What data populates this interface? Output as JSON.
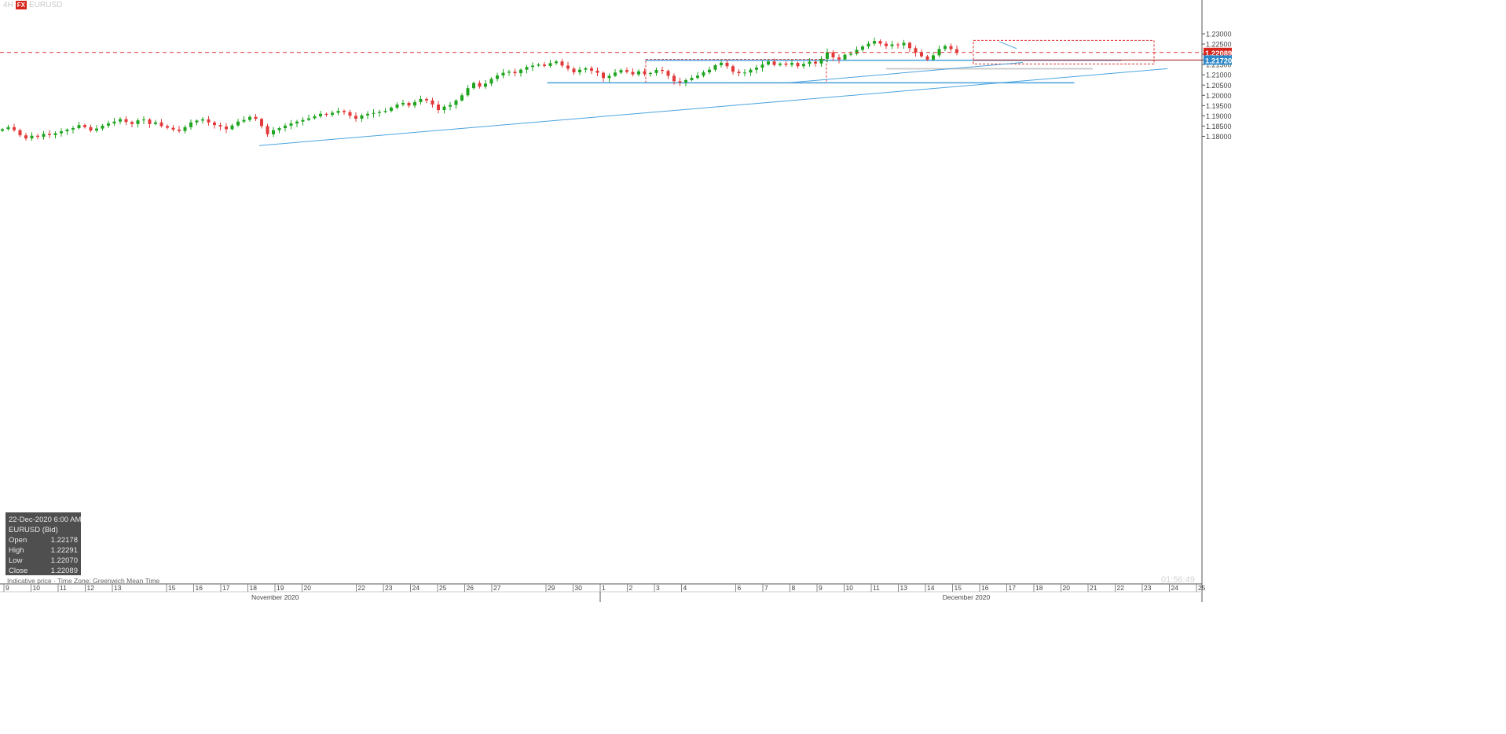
{
  "header": {
    "timeframe": "4H",
    "badge": "FX",
    "symbol": "EURUSD"
  },
  "tooltip": {
    "datetime": "22-Dec-2020 6:00 AM",
    "instrument": "EURUSD (Bid)",
    "rows": [
      {
        "label": "Open",
        "value": "1.22178"
      },
      {
        "label": "High",
        "value": "1.22291"
      },
      {
        "label": "Low",
        "value": "1.22070"
      },
      {
        "label": "Close",
        "value": "1.22089"
      }
    ]
  },
  "footnote": "Indicative price · Time Zone: Greenwich Mean Time",
  "clock": "01:56:49",
  "chart_data": {
    "type": "candlestick",
    "colors": {
      "up": "#1fa51f",
      "down": "#e23a3a",
      "trendline": "#4aa3df",
      "zone": "#e03030",
      "support_fill": "#c4c4c4"
    },
    "y_ticks": [
      "1.23000",
      "1.22500",
      "1.22000",
      "1.21500",
      "1.21000",
      "1.20500",
      "1.20000",
      "1.19500",
      "1.19000",
      "1.18500",
      "1.18000"
    ],
    "ylim": [
      1.1755,
      1.2325
    ],
    "x_ticks": [
      {
        "d": 9,
        "label": "9"
      },
      {
        "d": 10,
        "label": "10"
      },
      {
        "d": 11,
        "label": "11"
      },
      {
        "d": 12,
        "label": "12"
      },
      {
        "d": 13,
        "label": "13"
      },
      {
        "d": 15,
        "label": "15"
      },
      {
        "d": 16,
        "label": "16"
      },
      {
        "d": 17,
        "label": "17"
      },
      {
        "d": 18,
        "label": "18"
      },
      {
        "d": 19,
        "label": "19"
      },
      {
        "d": 20,
        "label": "20"
      },
      {
        "d": 22,
        "label": "22"
      },
      {
        "d": 23,
        "label": "23"
      },
      {
        "d": 24,
        "label": "24"
      },
      {
        "d": 25,
        "label": "25"
      },
      {
        "d": 26,
        "label": "26"
      },
      {
        "d": 27,
        "label": "27"
      },
      {
        "d": 29,
        "label": "29"
      },
      {
        "d": 30,
        "label": "30"
      },
      {
        "d": 31,
        "label": "1"
      },
      {
        "d": 32,
        "label": "2"
      },
      {
        "d": 33,
        "label": "3"
      },
      {
        "d": 34,
        "label": "4"
      },
      {
        "d": 36,
        "label": "6"
      },
      {
        "d": 37,
        "label": "7"
      },
      {
        "d": 38,
        "label": "8"
      },
      {
        "d": 39,
        "label": "9"
      },
      {
        "d": 40,
        "label": "10"
      },
      {
        "d": 41,
        "label": "11"
      },
      {
        "d": 42,
        "label": "13"
      },
      {
        "d": 43,
        "label": "14"
      },
      {
        "d": 44,
        "label": "15"
      },
      {
        "d": 45,
        "label": "16"
      },
      {
        "d": 46,
        "label": "17"
      },
      {
        "d": 47,
        "label": "18"
      },
      {
        "d": 48,
        "label": "20"
      },
      {
        "d": 49,
        "label": "21"
      },
      {
        "d": 50,
        "label": "22"
      },
      {
        "d": 51,
        "label": "23"
      },
      {
        "d": 52,
        "label": "24"
      },
      {
        "d": 53,
        "label": "25"
      }
    ],
    "month_labels": [
      {
        "d": 19,
        "label": "November 2020"
      },
      {
        "d": 44.5,
        "label": "December 2020"
      }
    ],
    "month_separator_day": 31,
    "closes": [
      1.1835,
      1.1845,
      1.183,
      1.1805,
      1.179,
      1.1803,
      1.1798,
      1.1812,
      1.1806,
      1.1815,
      1.1825,
      1.1833,
      1.184,
      1.1855,
      1.1845,
      1.1828,
      1.1838,
      1.1852,
      1.1863,
      1.1872,
      1.1884,
      1.187,
      1.186,
      1.1878,
      1.1882,
      1.186,
      1.1868,
      1.185,
      1.1842,
      1.1833,
      1.1826,
      1.1845,
      1.1868,
      1.1877,
      1.1883,
      1.1868,
      1.1855,
      1.1848,
      1.1835,
      1.1853,
      1.1872,
      1.188,
      1.1895,
      1.1885,
      1.185,
      1.181,
      1.183,
      1.184,
      1.1852,
      1.1863,
      1.1872,
      1.188,
      1.1888,
      1.1898,
      1.191,
      1.1905,
      1.1915,
      1.1924,
      1.1918,
      1.19,
      1.1886,
      1.1902,
      1.191,
      1.1914,
      1.1919,
      1.1924,
      1.194,
      1.1955,
      1.1963,
      1.195,
      1.1967,
      1.1982,
      1.1975,
      1.1955,
      1.1928,
      1.1945,
      1.1953,
      1.1975,
      1.2,
      1.2035,
      1.206,
      1.2042,
      1.2057,
      1.208,
      1.2097,
      1.211,
      1.2115,
      1.2108,
      1.2125,
      1.2138,
      1.2145,
      1.215,
      1.2143,
      1.2157,
      1.2165,
      1.2145,
      1.213,
      1.2112,
      1.2125,
      1.2132,
      1.212,
      1.211,
      1.2084,
      1.2095,
      1.2111,
      1.2123,
      1.2114,
      1.2102,
      1.2117,
      1.2104,
      1.2109,
      1.2124,
      1.2119,
      1.2095,
      1.2069,
      1.2063,
      1.2074,
      1.2085,
      1.2096,
      1.2112,
      1.2125,
      1.2147,
      1.2159,
      1.2142,
      1.2115,
      1.2108,
      1.2111,
      1.2125,
      1.2135,
      1.215,
      1.2165,
      1.2148,
      1.2155,
      1.2149,
      1.2158,
      1.2142,
      1.2153,
      1.2164,
      1.2155,
      1.2178,
      1.221,
      1.2185,
      1.2175,
      1.2198,
      1.2203,
      1.2222,
      1.2238,
      1.2252,
      1.2265,
      1.2252,
      1.224,
      1.2248,
      1.2244,
      1.2256,
      1.223,
      1.2208,
      1.219,
      1.2174,
      1.2195,
      1.2226,
      1.224,
      1.2225,
      1.2208
    ],
    "last_price": "1.22089",
    "level_price": "1.21720",
    "last_price_display": "1.22089",
    "level_price_display": "1.21720"
  }
}
